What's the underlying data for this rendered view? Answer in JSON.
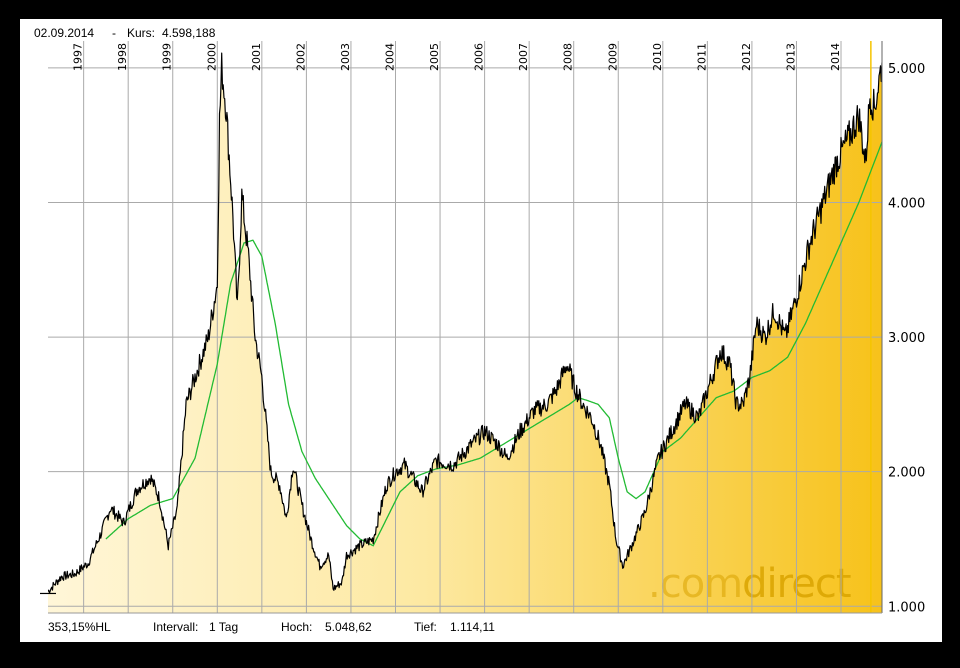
{
  "header": {
    "date": "02.09.2014",
    "separator": "-",
    "price_label": "Kurs:",
    "price_value": "4.598,188"
  },
  "footer": {
    "perf": "353,15%HL",
    "interval_label": "Intervall:",
    "interval_value": "1 Tag",
    "high_label": "Hoch:",
    "high_value": "5.048,62",
    "low_label": "Tief:",
    "low_value": "1.114,11"
  },
  "watermark": {
    "part1": ".com",
    "part2": "direct"
  },
  "colors": {
    "price": "#000000",
    "ma": "#22bb33",
    "fill_light": "#fff6d8",
    "fill_dark": "#f7c21a",
    "cursor": "#f5c400",
    "grid": "#aaaaaa"
  },
  "chart_data": {
    "type": "line",
    "x_unit": "year",
    "xlim": [
      1996.2,
      2014.92
    ],
    "ylim": [
      950,
      5200
    ],
    "y_ticks": [
      1000,
      2000,
      3000,
      4000,
      5000
    ],
    "y_tick_labels": [
      "1.000",
      "2.000",
      "3.000",
      "4.000",
      "5.000"
    ],
    "x_ticks": [
      1997,
      1998,
      1999,
      2000,
      2001,
      2002,
      2003,
      2004,
      2005,
      2006,
      2007,
      2008,
      2009,
      2010,
      2011,
      2012,
      2013,
      2014
    ],
    "x_tick_labels": [
      "1997",
      "1998",
      "1999",
      "2000",
      "2001",
      "2002",
      "2003",
      "2004",
      "2005",
      "2006",
      "2007",
      "2008",
      "2009",
      "2010",
      "2011",
      "2012",
      "2013",
      "2014"
    ],
    "cursor_x": 2014.67,
    "grid": true,
    "series": [
      {
        "kind": "price",
        "x": [
          1996.2,
          1996.5,
          1996.8,
          1997.1,
          1997.4,
          1997.6,
          1997.9,
          1998.2,
          1998.5,
          1998.7,
          1998.9,
          1999.1,
          1999.3,
          1999.6,
          1999.8,
          2000.0,
          2000.05,
          2000.1,
          2000.2,
          2000.35,
          2000.45,
          2000.55,
          2000.7,
          2000.85,
          2001.0,
          2001.2,
          2001.4,
          2001.55,
          2001.7,
          2001.9,
          2002.1,
          2002.3,
          2002.5,
          2002.6,
          2002.8,
          2002.9,
          2003.2,
          2003.5,
          2003.8,
          2004.0,
          2004.2,
          2004.6,
          2004.9,
          2005.3,
          2005.7,
          2006.0,
          2006.3,
          2006.5,
          2006.8,
          2007.1,
          2007.4,
          2007.6,
          2007.85,
          2008.0,
          2008.2,
          2008.4,
          2008.6,
          2008.8,
          2008.95,
          2009.1,
          2009.3,
          2009.6,
          2009.9,
          2010.2,
          2010.5,
          2010.8,
          2011.1,
          2011.3,
          2011.5,
          2011.65,
          2011.8,
          2011.95,
          2012.1,
          2012.3,
          2012.5,
          2012.75,
          2013.0,
          2013.3,
          2013.6,
          2013.9,
          2014.05,
          2014.2,
          2014.4,
          2014.55,
          2014.65,
          2014.75,
          2014.92
        ],
        "y": [
          1110,
          1220,
          1240,
          1320,
          1550,
          1730,
          1620,
          1870,
          1960,
          1800,
          1450,
          1720,
          2500,
          2800,
          3000,
          3400,
          4600,
          5000,
          4700,
          3900,
          3200,
          4050,
          3600,
          3000,
          2700,
          2000,
          1900,
          1650,
          2050,
          1750,
          1500,
          1300,
          1380,
          1130,
          1180,
          1380,
          1450,
          1500,
          1900,
          2000,
          2050,
          1850,
          2080,
          2050,
          2200,
          2300,
          2200,
          2100,
          2300,
          2450,
          2500,
          2600,
          2800,
          2650,
          2500,
          2400,
          2200,
          1900,
          1500,
          1300,
          1450,
          1700,
          2100,
          2300,
          2500,
          2400,
          2700,
          2900,
          2800,
          2500,
          2500,
          2700,
          3100,
          3000,
          3200,
          3000,
          3300,
          3700,
          4000,
          4300,
          4400,
          4500,
          4650,
          4300,
          4800,
          4700,
          5040
        ]
      },
      {
        "kind": "moving-average",
        "x": [
          1997.5,
          1998.0,
          1998.5,
          1999.0,
          1999.5,
          2000.0,
          2000.3,
          2000.6,
          2000.8,
          2001.0,
          2001.3,
          2001.6,
          2001.9,
          2002.2,
          2002.6,
          2002.9,
          2003.2,
          2003.5,
          2003.8,
          2004.1,
          2004.5,
          2004.9,
          2005.4,
          2005.9,
          2006.4,
          2006.9,
          2007.4,
          2007.9,
          2008.1,
          2008.3,
          2008.55,
          2008.8,
          2009.0,
          2009.2,
          2009.4,
          2009.6,
          2009.8,
          2010.0,
          2010.4,
          2010.8,
          2011.2,
          2011.6,
          2012.0,
          2012.4,
          2012.8,
          2013.2,
          2013.6,
          2014.0,
          2014.4,
          2014.92
        ],
        "y": [
          1500,
          1650,
          1750,
          1800,
          2100,
          2800,
          3400,
          3700,
          3720,
          3600,
          3100,
          2500,
          2150,
          1950,
          1750,
          1600,
          1500,
          1450,
          1650,
          1850,
          1970,
          2020,
          2050,
          2100,
          2200,
          2300,
          2400,
          2500,
          2550,
          2530,
          2500,
          2400,
          2100,
          1850,
          1800,
          1850,
          2000,
          2150,
          2250,
          2400,
          2550,
          2600,
          2700,
          2750,
          2850,
          3100,
          3400,
          3700,
          4000,
          4450
        ]
      }
    ]
  }
}
